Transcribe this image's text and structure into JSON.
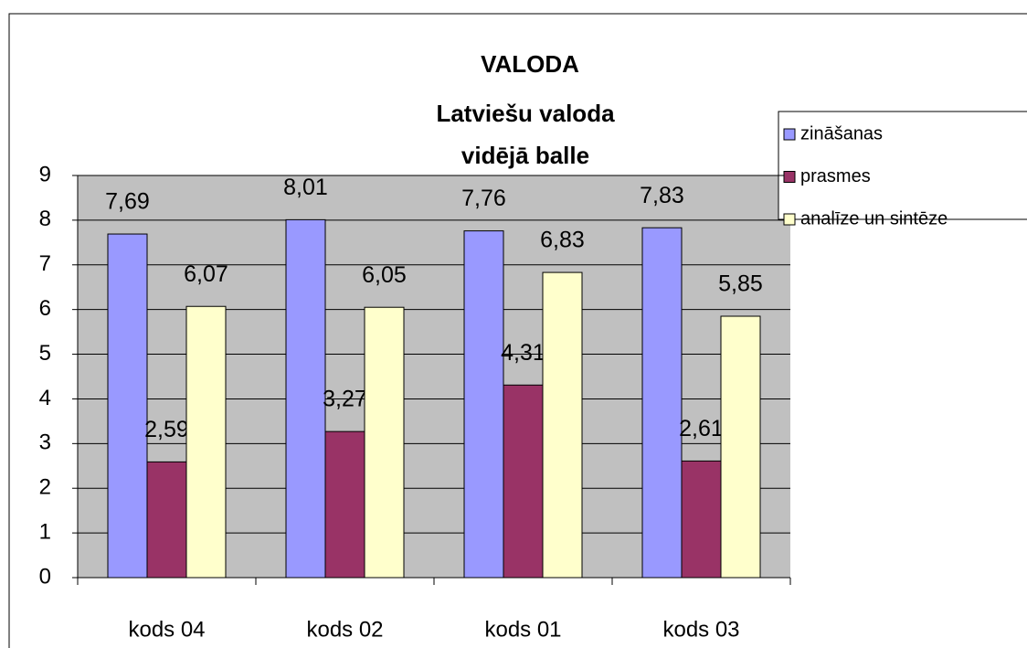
{
  "chart_data": {
    "type": "bar",
    "title": "VALODA",
    "subtitle": [
      "Latviešu valoda",
      "vidējā balle"
    ],
    "categories": [
      "kods 04",
      "kods 02",
      "kods 01",
      "kods 03"
    ],
    "series": [
      {
        "name": "zināšanas",
        "color": "#9999ff",
        "values": [
          7.69,
          8.01,
          7.76,
          7.83
        ],
        "value_labels": [
          "7,69",
          "8,01",
          "7,76",
          "7,83"
        ]
      },
      {
        "name": "prasmes",
        "color": "#993366",
        "values": [
          2.59,
          3.27,
          4.31,
          2.61
        ],
        "value_labels": [
          "2,59",
          "3,27",
          "4,31",
          "2,61"
        ]
      },
      {
        "name": "analīze un sintēze",
        "color": "#ffffcc",
        "values": [
          6.07,
          6.05,
          6.83,
          5.85
        ],
        "value_labels": [
          "6,07",
          "6,05",
          "6,83",
          "5,85"
        ]
      }
    ],
    "ylim": [
      0,
      9
    ],
    "yticks": [
      0,
      1,
      2,
      3,
      4,
      5,
      6,
      7,
      8,
      9
    ],
    "grid": true,
    "legend": "right"
  }
}
